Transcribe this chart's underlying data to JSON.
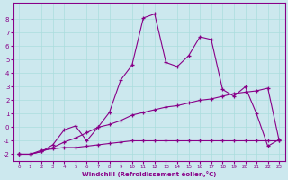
{
  "xlabel": "Windchill (Refroidissement éolien,°C)",
  "x": [
    0,
    1,
    2,
    3,
    4,
    5,
    6,
    7,
    8,
    9,
    10,
    11,
    12,
    13,
    14,
    15,
    16,
    17,
    18,
    19,
    20,
    21,
    22,
    23
  ],
  "line1_y": [
    -2,
    -2,
    -1.8,
    -1.3,
    -0.2,
    0.1,
    -1.0,
    0.0,
    1.1,
    3.5,
    4.6,
    8.1,
    8.4,
    4.8,
    4.5,
    5.3,
    6.7,
    6.5,
    2.8,
    2.3,
    3.0,
    1.0,
    -1.4,
    -0.9
  ],
  "line2_y": [
    -2,
    -2,
    -1.7,
    -1.6,
    -1.5,
    -1.5,
    -1.4,
    -1.3,
    -1.2,
    -1.1,
    -1.0,
    -1.0,
    -1.0,
    -1.0,
    -1.0,
    -1.0,
    -1.0,
    -1.0,
    -1.0,
    -1.0,
    -1.0,
    -1.0,
    -1.0,
    -1.0
  ],
  "line3_y": [
    -2,
    -2,
    -1.8,
    -1.5,
    -1.1,
    -0.8,
    -0.4,
    0.0,
    0.2,
    0.5,
    0.9,
    1.1,
    1.3,
    1.5,
    1.6,
    1.8,
    2.0,
    2.1,
    2.3,
    2.5,
    2.6,
    2.7,
    2.9,
    -1.0
  ],
  "bg_color": "#cce8ee",
  "line_color": "#880088",
  "grid_color": "#aadddd",
  "ylim": [
    -2.5,
    9.2
  ],
  "xlim": [
    -0.5,
    23.5
  ],
  "yticks": [
    -2,
    -1,
    0,
    1,
    2,
    3,
    4,
    5,
    6,
    7,
    8
  ],
  "xticks": [
    0,
    1,
    2,
    3,
    4,
    5,
    6,
    7,
    8,
    9,
    10,
    11,
    12,
    13,
    14,
    15,
    16,
    17,
    18,
    19,
    20,
    21,
    22,
    23
  ]
}
